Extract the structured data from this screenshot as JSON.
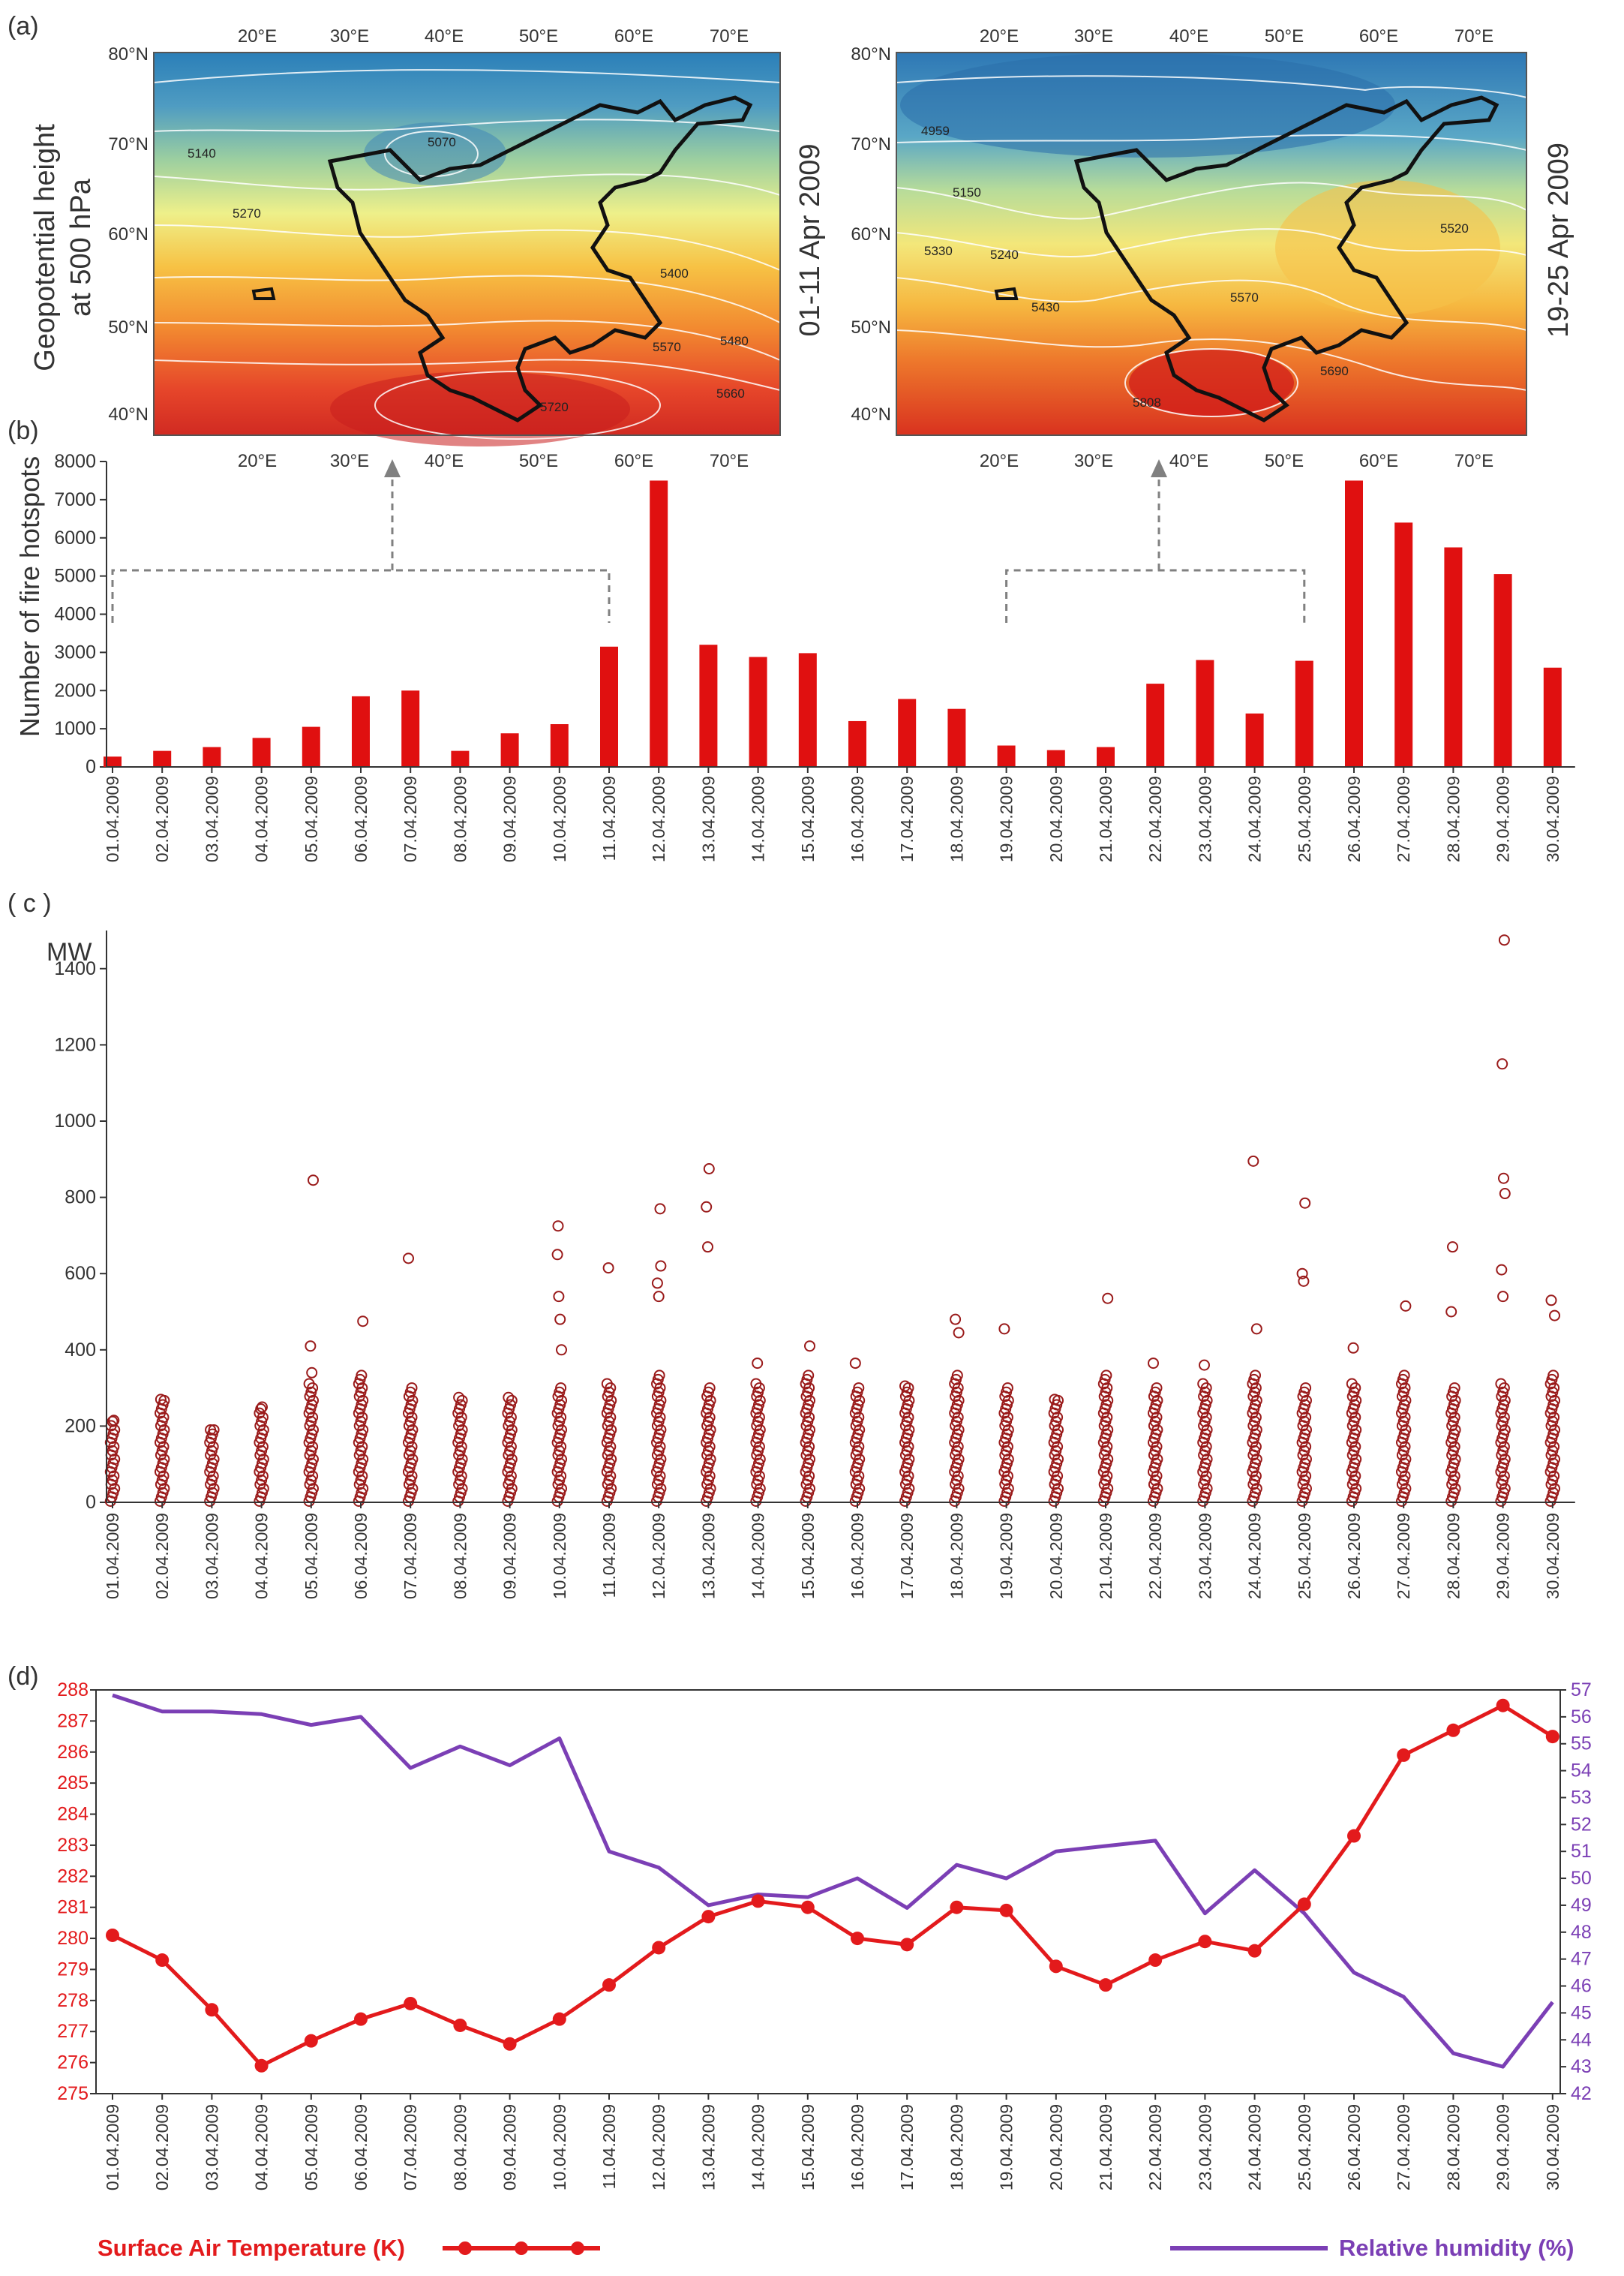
{
  "colors": {
    "bar": "#e01010",
    "frp": "#9a1a1a",
    "temp": "#e31a1c",
    "rh": "#7b3fb5",
    "axis": "#333333",
    "arrow": "#808080",
    "contour": "#ffffff"
  },
  "dates": [
    "01.04.2009",
    "02.04.2009",
    "03.04.2009",
    "04.04.2009",
    "05.04.2009",
    "06.04.2009",
    "07.04.2009",
    "08.04.2009",
    "09.04.2009",
    "10.04.2009",
    "11.04.2009",
    "12.04.2009",
    "13.04.2009",
    "14.04.2009",
    "15.04.2009",
    "16.04.2009",
    "17.04.2009",
    "18.04.2009",
    "19.04.2009",
    "20.04.2009",
    "21.04.2009",
    "22.04.2009",
    "23.04.2009",
    "24.04.2009",
    "25.04.2009",
    "26.04.2009",
    "27.04.2009",
    "28.04.2009",
    "29.04.2009",
    "30.04.2009"
  ],
  "panel_a": {
    "label": "(a)",
    "ylabel_line1": "Geopotential height",
    "ylabel_line2": "at 500 hPa",
    "lon_ticks": [
      "20°E",
      "30°E",
      "40°E",
      "50°E",
      "60°E",
      "70°E"
    ],
    "lat_ticks": [
      "80°N",
      "70°N",
      "60°N",
      "50°N",
      "40°N"
    ],
    "maps": [
      {
        "period": "01-11 Apr 2009",
        "contours": [
          "5070",
          "5140",
          "5270",
          "5400",
          "5480",
          "5570",
          "5660",
          "5720"
        ]
      },
      {
        "period": "19-25 Apr 2009",
        "contours": [
          "4959",
          "5150",
          "5240",
          "5330",
          "5430",
          "5520",
          "5570",
          "5690",
          "5808"
        ]
      }
    ]
  },
  "chart_data": [
    {
      "type": "bar",
      "panel": "(b)",
      "title": "",
      "xlabel": "",
      "ylabel": "Number of fire hotspots",
      "ylim": [
        0,
        8000
      ],
      "yticks": [
        "0",
        "1000",
        "2000",
        "3000",
        "4000",
        "5000",
        "6000",
        "7000",
        "8000"
      ],
      "categories_ref": "dates",
      "values": [
        270,
        420,
        520,
        760,
        1050,
        1850,
        2000,
        420,
        880,
        1120,
        3150,
        7500,
        3200,
        2880,
        2980,
        1200,
        1780,
        1520,
        560,
        440,
        520,
        2180,
        2800,
        1400,
        2780,
        7500,
        6400,
        5750,
        5050,
        2600
      ]
    },
    {
      "type": "scatter",
      "panel": "( c )",
      "ylabel": "MW",
      "ylim": [
        0,
        1500
      ],
      "yticks": [
        "0",
        "200",
        "400",
        "600",
        "800",
        "1000",
        "1200",
        "1400"
      ],
      "categories_ref": "dates",
      "max_frp": [
        215,
        270,
        190,
        250,
        845,
        475,
        640,
        275,
        275,
        725,
        615,
        770,
        875,
        365,
        410,
        365,
        305,
        480,
        455,
        270,
        535,
        365,
        360,
        895,
        785,
        405,
        515,
        670,
        1475,
        530
      ],
      "outliers": [
        [],
        [],
        [],
        [],
        [
          410,
          340
        ],
        [],
        [],
        [],
        [],
        [
          650,
          540,
          480,
          400
        ],
        [],
        [
          620,
          575,
          540
        ],
        [
          775,
          670
        ],
        [],
        [],
        [],
        [],
        [
          445
        ],
        [],
        [],
        [],
        [],
        [],
        [
          455
        ],
        [
          600,
          580
        ],
        [],
        [],
        [
          500
        ],
        [
          1150,
          850,
          810,
          610,
          540
        ],
        [
          490
        ]
      ]
    },
    {
      "type": "line",
      "panel": "(d)",
      "categories_ref": "dates",
      "y_left": {
        "ylim": [
          275,
          288
        ],
        "yticks": [
          "275",
          "276",
          "277",
          "278",
          "279",
          "280",
          "281",
          "282",
          "283",
          "284",
          "285",
          "286",
          "287",
          "288"
        ]
      },
      "y_right": {
        "ylim": [
          42,
          57
        ],
        "yticks": [
          "42",
          "43",
          "44",
          "45",
          "46",
          "47",
          "48",
          "49",
          "50",
          "51",
          "52",
          "53",
          "54",
          "55",
          "56",
          "57"
        ]
      },
      "series": [
        {
          "name": "Surface Air Temperature (K)",
          "axis": "left",
          "markers": true,
          "values": [
            280.1,
            279.3,
            277.7,
            275.9,
            276.7,
            277.4,
            277.9,
            277.2,
            276.6,
            277.4,
            278.5,
            279.7,
            280.7,
            281.2,
            281.0,
            280.0,
            279.8,
            281.0,
            280.9,
            279.1,
            278.5,
            279.3,
            279.9,
            279.6,
            281.1,
            283.3,
            285.9,
            286.7,
            287.5,
            286.5
          ]
        },
        {
          "name": "Relative humidity (%)",
          "axis": "right",
          "markers": false,
          "values": [
            56.8,
            56.2,
            56.2,
            56.1,
            55.7,
            56.0,
            54.1,
            54.9,
            54.2,
            55.2,
            51.0,
            50.4,
            49.0,
            49.4,
            49.3,
            50.0,
            48.9,
            50.5,
            50.0,
            51.0,
            51.2,
            51.4,
            48.7,
            50.3,
            48.7,
            46.5,
            45.6,
            43.5,
            43.0,
            45.4
          ]
        }
      ]
    }
  ]
}
